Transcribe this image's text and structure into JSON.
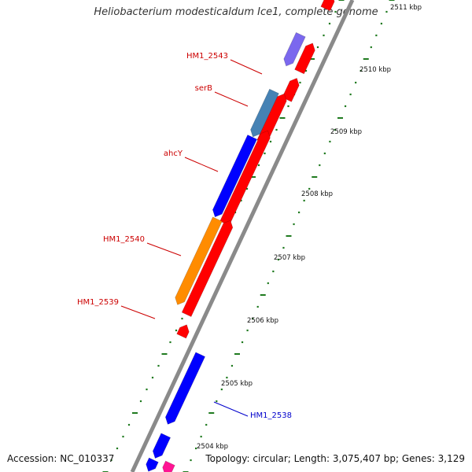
{
  "title": "Heliobacterium modesticaldum Ice1, complete genome",
  "accession_label": "Accession: NC_010337",
  "topology_label": "Topology: circular; Length: 3,075,407 bp; Genes: 3,129",
  "colors": {
    "backbone": "#8a8a8a",
    "tick": "#1f7a1f",
    "label_red": "#cc0000",
    "label_blue": "#0000cc",
    "gene_red": "#ff0000",
    "gene_blue": "#0000ff",
    "gene_steelblue": "#4682b4",
    "gene_orange": "#ff8c00",
    "gene_purple": "#7b68ee",
    "gene_pink": "#ff1493"
  },
  "scale_labels": [
    "2504 kbp",
    "2505 kbp",
    "2506 kbp",
    "2507 kbp",
    "2508 kbp",
    "2509 kbp",
    "2510 kbp",
    "2511 kbp"
  ],
  "gene_labels": [
    {
      "text": "HM1_2543",
      "color": "red"
    },
    {
      "text": "serB",
      "color": "red"
    },
    {
      "text": "ahcY",
      "color": "red"
    },
    {
      "text": "HM1_2540",
      "color": "red"
    },
    {
      "text": "HM1_2539",
      "color": "red"
    },
    {
      "text": "HM1_2538",
      "color": "blue"
    }
  ]
}
